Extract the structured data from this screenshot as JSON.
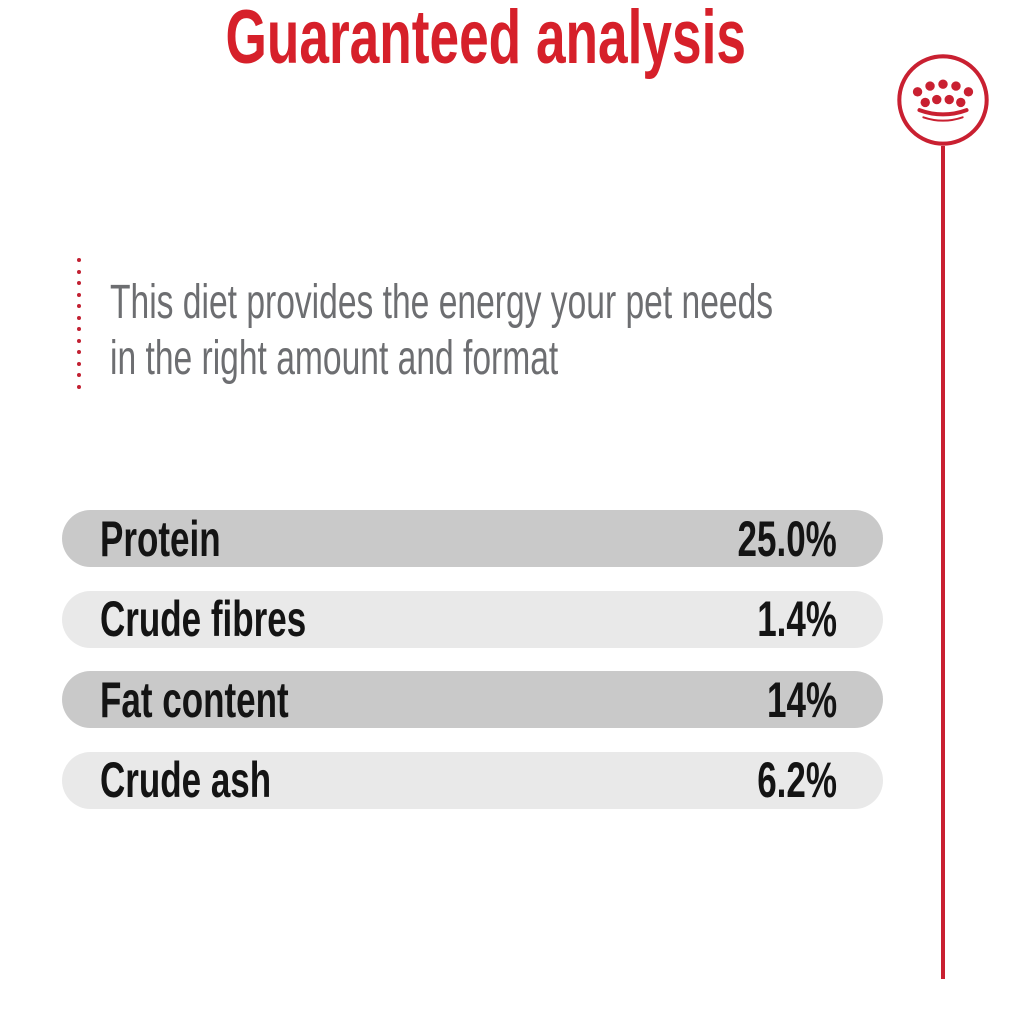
{
  "header": {
    "title": "Guaranteed analysis",
    "title_color": "#d6202a"
  },
  "brand": {
    "logo_icon": "royal-canin-crown-icon",
    "color": "#c92031"
  },
  "intro": {
    "line1": "This diet provides the energy your pet needs",
    "line2": "in the right amount and format",
    "text_color": "#6d6e71",
    "accent_dots_count": 12,
    "accent_dot_color": "#c22032"
  },
  "analysis_table": {
    "rows": [
      {
        "label": "Protein",
        "value": "25.0%"
      },
      {
        "label": "Crude fibres",
        "value": "1.4%"
      },
      {
        "label": "Fat content",
        "value": "14%"
      },
      {
        "label": "Crude ash",
        "value": "6.2%"
      }
    ],
    "row_colors": {
      "odd": "#c9c9c9",
      "even": "#e9e9e9"
    }
  }
}
